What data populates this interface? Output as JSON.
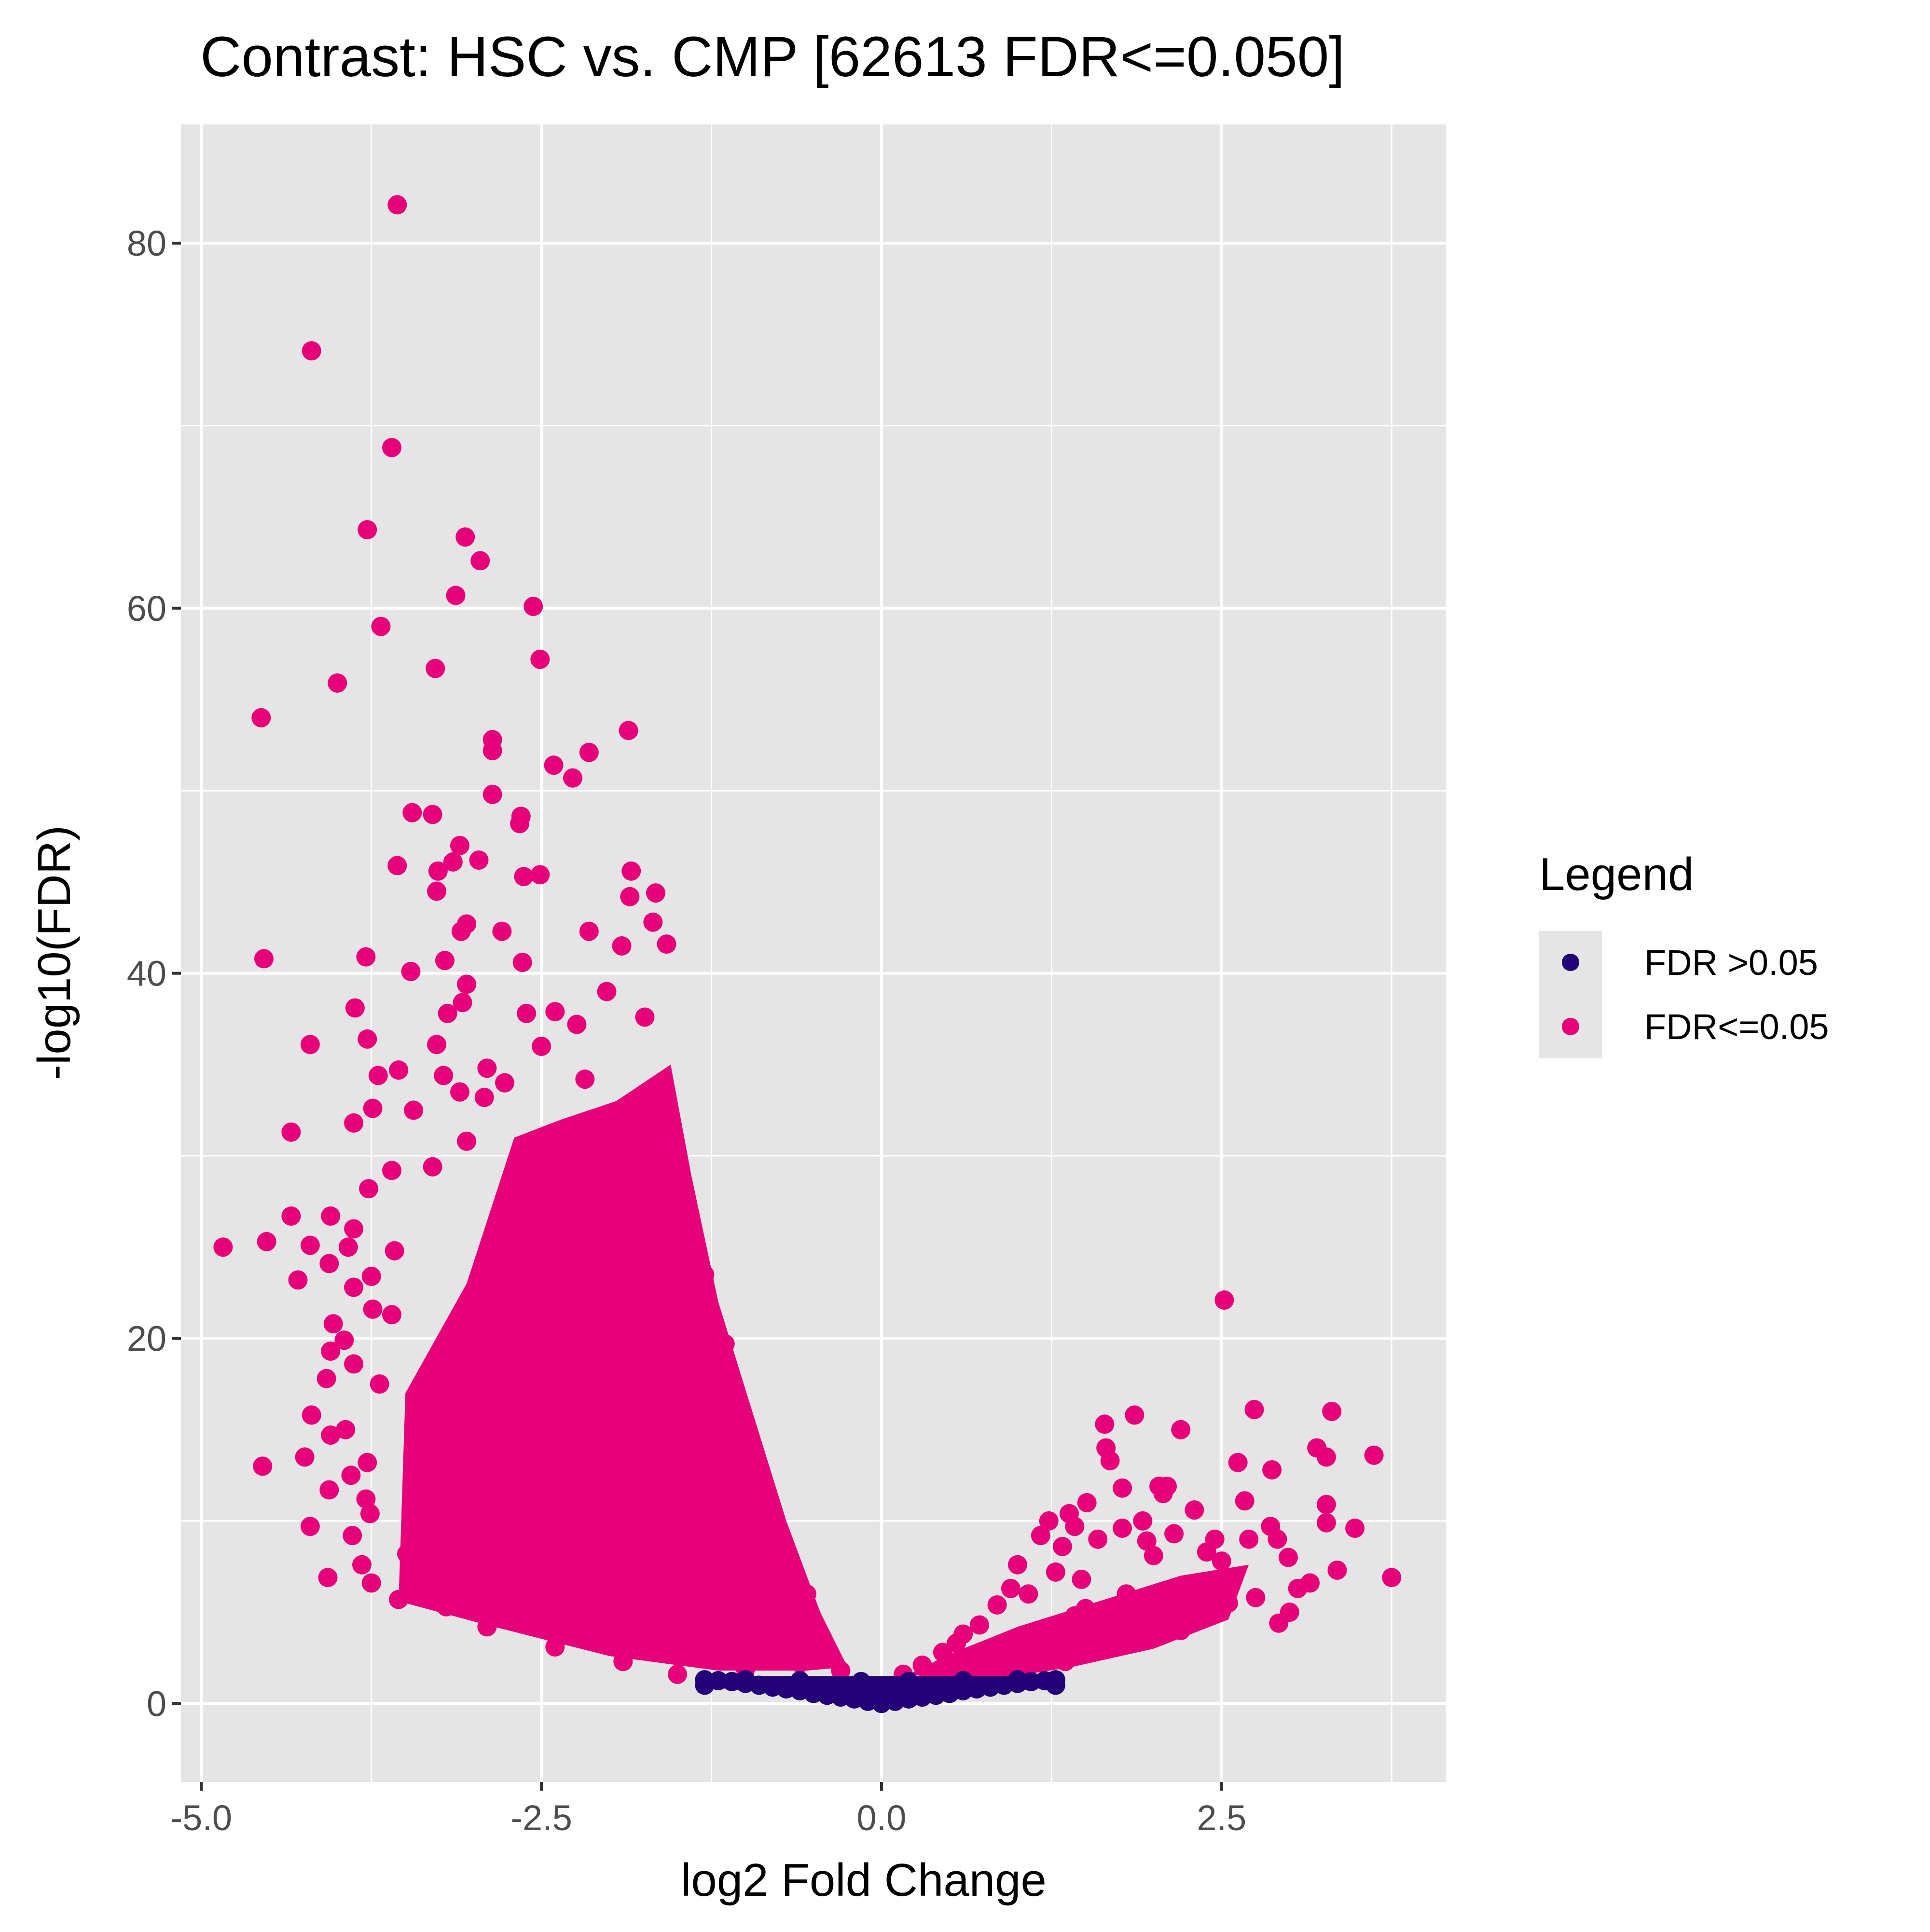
{
  "chart_data": {
    "type": "scatter",
    "title": "Contrast: HSC vs. CMP  [62613 FDR<=0.050]",
    "xlabel": "log2 Fold Change",
    "ylabel": "-log10(FDR)",
    "xlim": [
      -5.15,
      4.15
    ],
    "ylim": [
      -4.3,
      86.5
    ],
    "x_ticks": [
      -5.0,
      -2.5,
      0.0,
      2.5
    ],
    "x_tick_labels": [
      "-5.0",
      "-2.5",
      "0.0",
      "2.5"
    ],
    "y_ticks": [
      0,
      20,
      40,
      60,
      80
    ],
    "y_tick_labels": [
      "0",
      "20",
      "40",
      "60",
      "80"
    ],
    "grid": true,
    "background": "#e5e5e5",
    "legend": {
      "title": "Legend",
      "placement": "right",
      "entries": [
        {
          "label": "FDR >0.05",
          "color": "#240078"
        },
        {
          "label": "FDR<=0.05",
          "color": "#e6007a"
        }
      ]
    },
    "series": [
      {
        "name": "FDR<=0.05",
        "color": "#e6007a",
        "points": [
          [
            -3.56,
            82.1
          ],
          [
            -4.19,
            74.1
          ],
          [
            -3.6,
            68.8
          ],
          [
            -3.78,
            64.3
          ],
          [
            -3.06,
            63.9
          ],
          [
            -2.95,
            62.6
          ],
          [
            -3.13,
            60.7
          ],
          [
            -2.56,
            60.1
          ],
          [
            -3.68,
            59.0
          ],
          [
            -2.51,
            57.2
          ],
          [
            -3.28,
            56.7
          ],
          [
            -4.0,
            55.9
          ],
          [
            -4.56,
            54.0
          ],
          [
            -1.86,
            53.3
          ],
          [
            -2.86,
            52.8
          ],
          [
            -2.86,
            52.2
          ],
          [
            -2.15,
            52.1
          ],
          [
            -2.41,
            51.4
          ],
          [
            -2.27,
            50.7
          ],
          [
            -2.86,
            49.8
          ],
          [
            -3.45,
            48.8
          ],
          [
            -3.3,
            48.7
          ],
          [
            -2.65,
            48.6
          ],
          [
            -2.66,
            48.2
          ],
          [
            -3.1,
            47.0
          ],
          [
            -3.56,
            45.9
          ],
          [
            -3.15,
            46.1
          ],
          [
            -2.96,
            46.2
          ],
          [
            -3.26,
            45.6
          ],
          [
            -2.51,
            45.4
          ],
          [
            -2.63,
            45.3
          ],
          [
            -1.84,
            45.6
          ],
          [
            -1.66,
            44.4
          ],
          [
            -3.27,
            44.5
          ],
          [
            -1.85,
            44.2
          ],
          [
            -3.05,
            42.7
          ],
          [
            -1.68,
            42.8
          ],
          [
            -2.79,
            42.3
          ],
          [
            -2.15,
            42.3
          ],
          [
            -3.09,
            42.3
          ],
          [
            -1.58,
            41.6
          ],
          [
            -1.91,
            41.5
          ],
          [
            -3.21,
            40.7
          ],
          [
            -2.64,
            40.6
          ],
          [
            -3.79,
            40.9
          ],
          [
            -4.54,
            40.8
          ],
          [
            -3.46,
            40.1
          ],
          [
            -3.05,
            39.4
          ],
          [
            -2.02,
            39.0
          ],
          [
            -3.08,
            38.4
          ],
          [
            -3.87,
            38.1
          ],
          [
            -3.19,
            37.8
          ],
          [
            -2.61,
            37.8
          ],
          [
            -2.4,
            37.9
          ],
          [
            -2.24,
            37.2
          ],
          [
            -1.74,
            37.6
          ],
          [
            -3.78,
            36.4
          ],
          [
            -4.2,
            36.1
          ],
          [
            -3.27,
            36.1
          ],
          [
            -2.5,
            36.0
          ],
          [
            -2.9,
            34.8
          ],
          [
            -3.55,
            34.7
          ],
          [
            -3.7,
            34.4
          ],
          [
            -3.22,
            34.4
          ],
          [
            -2.18,
            34.2
          ],
          [
            -2.77,
            34.0
          ],
          [
            -3.1,
            33.5
          ],
          [
            -2.92,
            33.2
          ],
          [
            -3.44,
            32.5
          ],
          [
            -3.74,
            32.6
          ],
          [
            -3.88,
            31.8
          ],
          [
            -4.34,
            31.3
          ],
          [
            -3.05,
            30.8
          ],
          [
            -3.3,
            29.4
          ],
          [
            -3.6,
            29.2
          ],
          [
            -3.77,
            28.2
          ],
          [
            -4.05,
            26.7
          ],
          [
            -4.34,
            26.7
          ],
          [
            -3.88,
            26.0
          ],
          [
            -4.52,
            25.3
          ],
          [
            -4.84,
            25.0
          ],
          [
            -4.2,
            25.1
          ],
          [
            -3.92,
            25.0
          ],
          [
            -3.58,
            24.8
          ],
          [
            -4.06,
            24.1
          ],
          [
            -3.75,
            23.4
          ],
          [
            -4.29,
            23.2
          ],
          [
            -3.88,
            22.8
          ],
          [
            -3.6,
            21.3
          ],
          [
            -3.74,
            21.6
          ],
          [
            -4.03,
            20.8
          ],
          [
            -3.95,
            19.9
          ],
          [
            -4.05,
            19.3
          ],
          [
            -3.88,
            18.6
          ],
          [
            -4.08,
            17.8
          ],
          [
            -3.69,
            17.5
          ],
          [
            -4.19,
            15.8
          ],
          [
            -3.94,
            15.0
          ],
          [
            -4.05,
            14.7
          ],
          [
            -4.24,
            13.5
          ],
          [
            -4.55,
            13.0
          ],
          [
            -3.78,
            13.2
          ],
          [
            -3.9,
            12.5
          ],
          [
            -4.06,
            11.7
          ],
          [
            -3.79,
            11.2
          ],
          [
            -3.76,
            10.4
          ],
          [
            -4.2,
            9.7
          ],
          [
            -3.89,
            9.2
          ],
          [
            -4.07,
            6.9
          ],
          [
            -3.82,
            7.6
          ],
          [
            -3.75,
            6.6
          ],
          [
            -3.49,
            8.2
          ],
          [
            -3.55,
            5.7
          ],
          [
            -3.2,
            5.3
          ],
          [
            -2.9,
            4.2
          ],
          [
            -2.4,
            3.1
          ],
          [
            -1.9,
            2.3
          ],
          [
            -1.5,
            1.6
          ],
          [
            -1.0,
            1.9
          ],
          [
            -0.6,
            2.2
          ],
          [
            -0.3,
            1.8
          ],
          [
            -0.45,
            3.8
          ],
          [
            -0.55,
            6.0
          ],
          [
            -0.8,
            9.5
          ],
          [
            -1.05,
            14.0
          ],
          [
            -1.15,
            19.7
          ],
          [
            -1.3,
            23.5
          ],
          [
            -1.45,
            27.2
          ],
          [
            -1.55,
            29.5
          ],
          [
            -1.65,
            33.5
          ],
          [
            -1.9,
            30.0
          ],
          [
            -2.4,
            28.5
          ],
          [
            -2.1,
            22.0
          ],
          [
            -2.5,
            21.0
          ],
          [
            -2.8,
            19.0
          ],
          [
            -3.1,
            17.0
          ],
          [
            -1.6,
            17.0
          ],
          [
            -2.0,
            12.0
          ],
          [
            -2.6,
            13.0
          ],
          [
            -3.3,
            12.0
          ],
          [
            -1.4,
            9.0
          ],
          [
            -2.3,
            8.0
          ],
          [
            -3.0,
            8.5
          ],
          [
            -1.2,
            5.0
          ],
          [
            -1.8,
            5.8
          ],
          [
            -2.6,
            6.0
          ],
          [
            -3.4,
            8.0
          ],
          [
            -1.75,
            25.0
          ],
          [
            -2.2,
            25.5
          ],
          [
            -2.65,
            25.0
          ],
          [
            0.16,
            1.6
          ],
          [
            0.3,
            2.1
          ],
          [
            0.45,
            2.8
          ],
          [
            0.55,
            3.3
          ],
          [
            0.6,
            3.8
          ],
          [
            0.72,
            4.3
          ],
          [
            0.85,
            5.4
          ],
          [
            0.95,
            6.3
          ],
          [
            1.0,
            7.6
          ],
          [
            1.08,
            6.0
          ],
          [
            1.17,
            9.2
          ],
          [
            1.23,
            10.0
          ],
          [
            1.28,
            7.2
          ],
          [
            1.33,
            8.6
          ],
          [
            1.38,
            10.4
          ],
          [
            1.42,
            9.7
          ],
          [
            1.47,
            6.8
          ],
          [
            1.51,
            11.0
          ],
          [
            1.59,
            9.0
          ],
          [
            1.65,
            14.0
          ],
          [
            1.68,
            13.3
          ],
          [
            1.64,
            15.3
          ],
          [
            1.77,
            9.6
          ],
          [
            1.77,
            11.8
          ],
          [
            1.86,
            15.8
          ],
          [
            1.92,
            10.0
          ],
          [
            2.0,
            8.1
          ],
          [
            2.04,
            11.9
          ],
          [
            2.07,
            11.5
          ],
          [
            2.1,
            11.9
          ],
          [
            2.2,
            15.0
          ],
          [
            2.3,
            10.6
          ],
          [
            2.39,
            8.3
          ],
          [
            2.52,
            22.1
          ],
          [
            2.62,
            13.2
          ],
          [
            2.67,
            11.1
          ],
          [
            2.74,
            16.1
          ],
          [
            2.87,
            12.8
          ],
          [
            2.86,
            9.7
          ],
          [
            2.91,
            9.0
          ],
          [
            2.99,
            8.0
          ],
          [
            3.06,
            6.3
          ],
          [
            3.15,
            6.6
          ],
          [
            3.2,
            14.0
          ],
          [
            3.27,
            10.9
          ],
          [
            3.27,
            9.9
          ],
          [
            3.31,
            16.0
          ],
          [
            3.27,
            13.5
          ],
          [
            3.35,
            7.3
          ],
          [
            3.48,
            9.6
          ],
          [
            3.62,
            13.6
          ],
          [
            3.75,
            6.9
          ],
          [
            2.92,
            4.4
          ],
          [
            3.0,
            5.0
          ],
          [
            2.55,
            5.5
          ],
          [
            2.35,
            6.3
          ],
          [
            2.2,
            4.0
          ],
          [
            1.9,
            3.5
          ],
          [
            1.6,
            3.0
          ],
          [
            1.35,
            2.3
          ],
          [
            1.05,
            2.0
          ],
          [
            1.8,
            6.0
          ],
          [
            2.1,
            5.2
          ],
          [
            2.5,
            7.8
          ],
          [
            2.75,
            5.8
          ],
          [
            1.5,
            5.2
          ],
          [
            2.45,
            9.0
          ],
          [
            2.7,
            9.0
          ],
          [
            2.15,
            9.3
          ],
          [
            1.95,
            8.9
          ],
          [
            1.42,
            4.8
          ],
          [
            1.2,
            3.4
          ]
        ]
      },
      {
        "name": "FDR >0.05",
        "color": "#240078",
        "points": [
          [
            -1.3,
            1.3
          ],
          [
            -1.2,
            1.25
          ],
          [
            -1.1,
            1.2
          ],
          [
            -1.0,
            1.1
          ],
          [
            -0.9,
            1.0
          ],
          [
            -0.8,
            0.9
          ],
          [
            -0.7,
            0.8
          ],
          [
            -0.6,
            0.7
          ],
          [
            -0.5,
            0.55
          ],
          [
            -0.4,
            0.45
          ],
          [
            -0.3,
            0.35
          ],
          [
            -0.2,
            0.25
          ],
          [
            -0.1,
            0.12
          ],
          [
            0.0,
            0.0
          ],
          [
            0.1,
            0.12
          ],
          [
            0.2,
            0.25
          ],
          [
            0.3,
            0.35
          ],
          [
            0.4,
            0.45
          ],
          [
            0.5,
            0.55
          ],
          [
            0.6,
            0.7
          ],
          [
            0.7,
            0.8
          ],
          [
            0.8,
            0.9
          ],
          [
            0.9,
            1.0
          ],
          [
            1.0,
            1.1
          ],
          [
            1.1,
            1.2
          ],
          [
            1.2,
            1.25
          ],
          [
            1.28,
            1.3
          ],
          [
            -1.3,
            1.0
          ],
          [
            1.28,
            1.0
          ],
          [
            -0.15,
            1.2
          ],
          [
            0.2,
            1.2
          ],
          [
            -0.6,
            1.25
          ],
          [
            0.6,
            1.25
          ],
          [
            -1.0,
            1.3
          ],
          [
            1.0,
            1.3
          ]
        ]
      }
    ]
  }
}
